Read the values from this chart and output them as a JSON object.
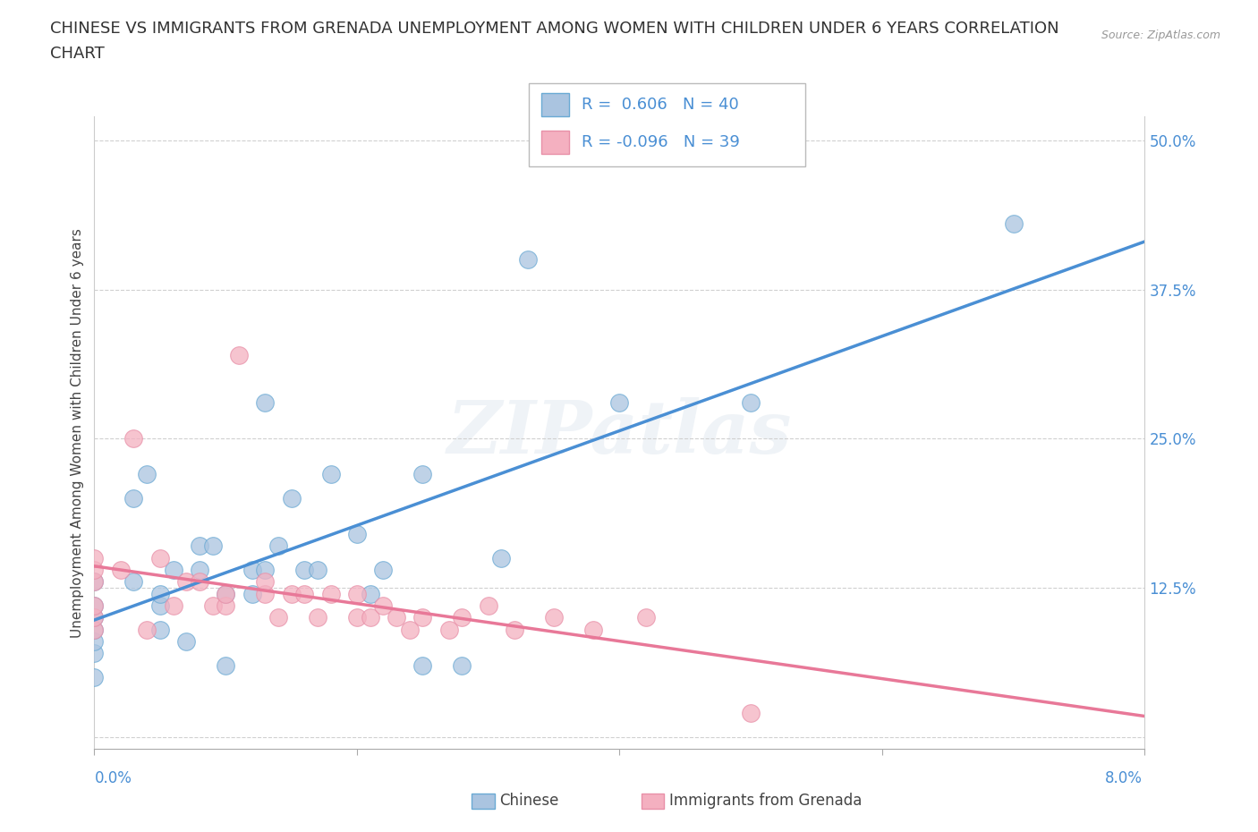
{
  "title_line1": "CHINESE VS IMMIGRANTS FROM GRENADA UNEMPLOYMENT AMONG WOMEN WITH CHILDREN UNDER 6 YEARS CORRELATION",
  "title_line2": "CHART",
  "source": "Source: ZipAtlas.com",
  "ylabel": "Unemployment Among Women with Children Under 6 years",
  "xlim": [
    0.0,
    0.08
  ],
  "ylim": [
    -0.01,
    0.52
  ],
  "yticks": [
    0.0,
    0.125,
    0.25,
    0.375,
    0.5
  ],
  "ytick_labels": [
    "",
    "12.5%",
    "25.0%",
    "37.5%",
    "50.0%"
  ],
  "xtick_vals": [
    0.0,
    0.02,
    0.04,
    0.06,
    0.08
  ],
  "grid_color": "#d0d0d0",
  "watermark": "ZIPatlas",
  "chinese_color": "#aac4e0",
  "grenada_color": "#f4b0c0",
  "chinese_edge_color": "#6aaad4",
  "grenada_edge_color": "#e890a8",
  "chinese_line_color": "#4a8fd4",
  "grenada_line_color": "#e87898",
  "label_color": "#4a8fd4",
  "chinese_R": 0.606,
  "chinese_N": 40,
  "grenada_R": -0.096,
  "grenada_N": 39,
  "chinese_scatter_x": [
    0.0,
    0.0,
    0.0,
    0.0,
    0.0,
    0.0,
    0.0,
    0.003,
    0.003,
    0.004,
    0.005,
    0.005,
    0.005,
    0.006,
    0.007,
    0.008,
    0.008,
    0.009,
    0.01,
    0.01,
    0.012,
    0.012,
    0.013,
    0.013,
    0.014,
    0.015,
    0.016,
    0.017,
    0.018,
    0.02,
    0.021,
    0.022,
    0.025,
    0.025,
    0.028,
    0.031,
    0.033,
    0.04,
    0.05,
    0.07
  ],
  "chinese_scatter_y": [
    0.05,
    0.07,
    0.08,
    0.09,
    0.1,
    0.11,
    0.13,
    0.13,
    0.2,
    0.22,
    0.09,
    0.11,
    0.12,
    0.14,
    0.08,
    0.14,
    0.16,
    0.16,
    0.06,
    0.12,
    0.12,
    0.14,
    0.14,
    0.28,
    0.16,
    0.2,
    0.14,
    0.14,
    0.22,
    0.17,
    0.12,
    0.14,
    0.06,
    0.22,
    0.06,
    0.15,
    0.4,
    0.28,
    0.28,
    0.43
  ],
  "grenada_scatter_x": [
    0.0,
    0.0,
    0.0,
    0.0,
    0.0,
    0.0,
    0.002,
    0.003,
    0.004,
    0.005,
    0.006,
    0.007,
    0.008,
    0.009,
    0.01,
    0.01,
    0.011,
    0.013,
    0.013,
    0.014,
    0.015,
    0.016,
    0.017,
    0.018,
    0.02,
    0.02,
    0.021,
    0.022,
    0.023,
    0.024,
    0.025,
    0.027,
    0.028,
    0.03,
    0.032,
    0.035,
    0.038,
    0.042,
    0.05
  ],
  "grenada_scatter_y": [
    0.09,
    0.1,
    0.11,
    0.13,
    0.14,
    0.15,
    0.14,
    0.25,
    0.09,
    0.15,
    0.11,
    0.13,
    0.13,
    0.11,
    0.11,
    0.12,
    0.32,
    0.12,
    0.13,
    0.1,
    0.12,
    0.12,
    0.1,
    0.12,
    0.1,
    0.12,
    0.1,
    0.11,
    0.1,
    0.09,
    0.1,
    0.09,
    0.1,
    0.11,
    0.09,
    0.1,
    0.09,
    0.1,
    0.02
  ],
  "bg_color": "#ffffff",
  "title_fontsize": 13,
  "axis_label_fontsize": 11,
  "tick_fontsize": 12
}
